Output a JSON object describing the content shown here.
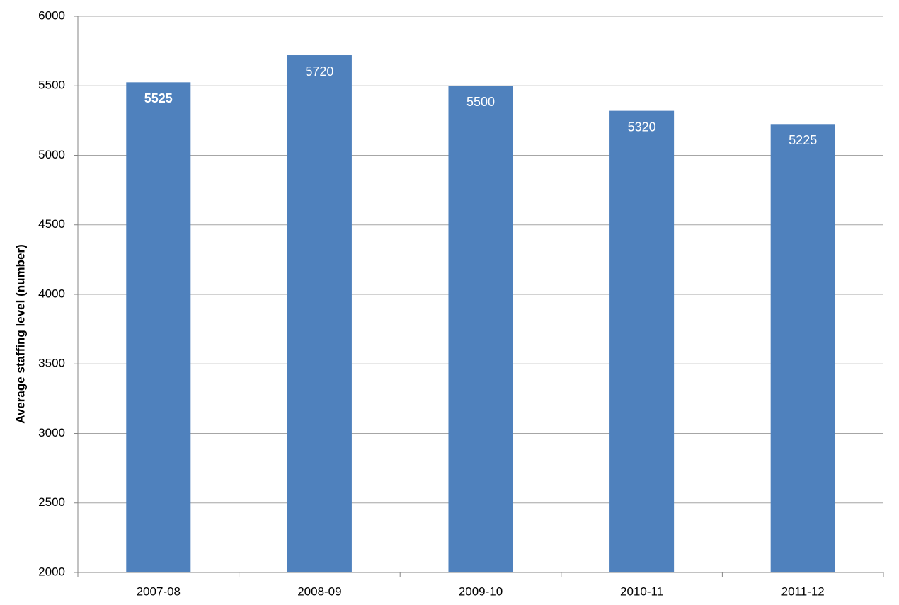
{
  "chart_data": {
    "type": "bar",
    "y_label": "Average staffing level (number)",
    "categories": [
      "2007-08",
      "2008-09",
      "2009-10",
      "2010-11",
      "2011-12"
    ],
    "values": [
      5525,
      5720,
      5500,
      5320,
      5225
    ],
    "color": "#4f81bd",
    "ylim": [
      2000,
      6000
    ],
    "yticks": [
      2000,
      2500,
      3000,
      3500,
      4000,
      4500,
      5000,
      5500,
      6000
    ],
    "grid": true
  }
}
